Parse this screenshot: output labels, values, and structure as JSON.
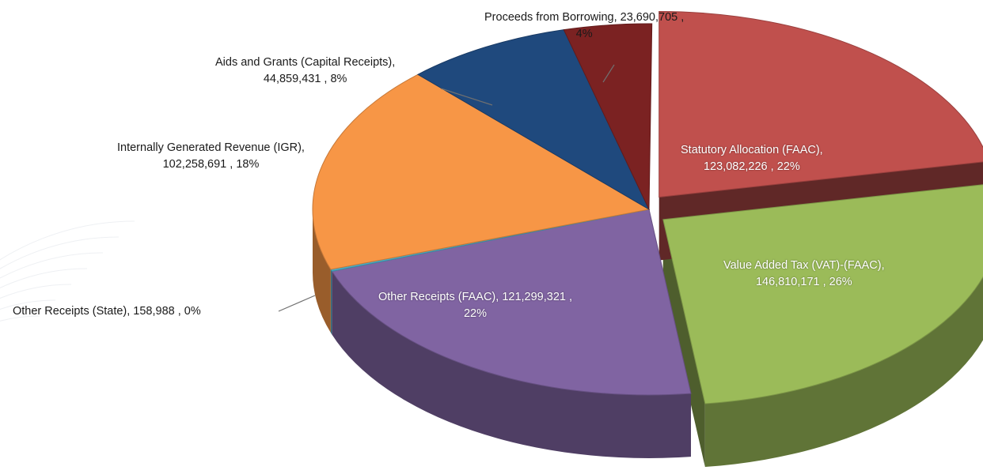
{
  "chart_data": {
    "type": "pie",
    "title": "",
    "slices": [
      {
        "category": "Statutory Allocation (FAAC)",
        "value": 123082226,
        "value_label": "123,082,226",
        "percent_label": "22%",
        "color": "#c0504d"
      },
      {
        "category": "Value Added Tax (VAT)-(FAAC)",
        "value": 146810171,
        "value_label": "146,810,171",
        "percent_label": "26%",
        "color": "#9bbb59"
      },
      {
        "category": "Other Receipts (FAAC)",
        "value": 121299321,
        "value_label": "121,299,321",
        "percent_label": "22%",
        "color": "#8064a2"
      },
      {
        "category": "Other Receipts (State)",
        "value": 158988,
        "value_label": "158,988",
        "percent_label": "0%",
        "color": "#4bacc6"
      },
      {
        "category": "Internally Generated Revenue (IGR)",
        "value": 102258691,
        "value_label": "102,258,691",
        "percent_label": "18%",
        "color": "#f79646"
      },
      {
        "category": "Aids and Grants (Capital Receipts)",
        "value": 44859431,
        "value_label": "44,859,431",
        "percent_label": "8%",
        "color": "#1f497d"
      },
      {
        "category": "Proceeds from  Borrowing",
        "value": 23690705,
        "value_label": "23,690,705",
        "percent_label": "4%",
        "color": "#7b2222"
      }
    ]
  },
  "labels": {
    "statutory": {
      "l1": "Statutory Allocation (FAAC),",
      "l2": "123,082,226 , 22%"
    },
    "vat": {
      "l1": "Value Added Tax (VAT)-(FAAC),",
      "l2": "146,810,171 , 26%"
    },
    "other_faac": {
      "l1": "Other Receipts (FAAC),  121,299,321 ,",
      "l2": "22%"
    },
    "other_state": {
      "l1": "Other Receipts (State),  158,988 , 0%"
    },
    "igr": {
      "l1": "Internally Generated Revenue (IGR),",
      "l2": "102,258,691 , 18%"
    },
    "aids": {
      "l1": "Aids and Grants (Capital Receipts),",
      "l2": "44,859,431 , 8%"
    },
    "borrowing": {
      "l1": "Proceeds from  Borrowing,  23,690,705 ,",
      "l2": "4%"
    }
  }
}
